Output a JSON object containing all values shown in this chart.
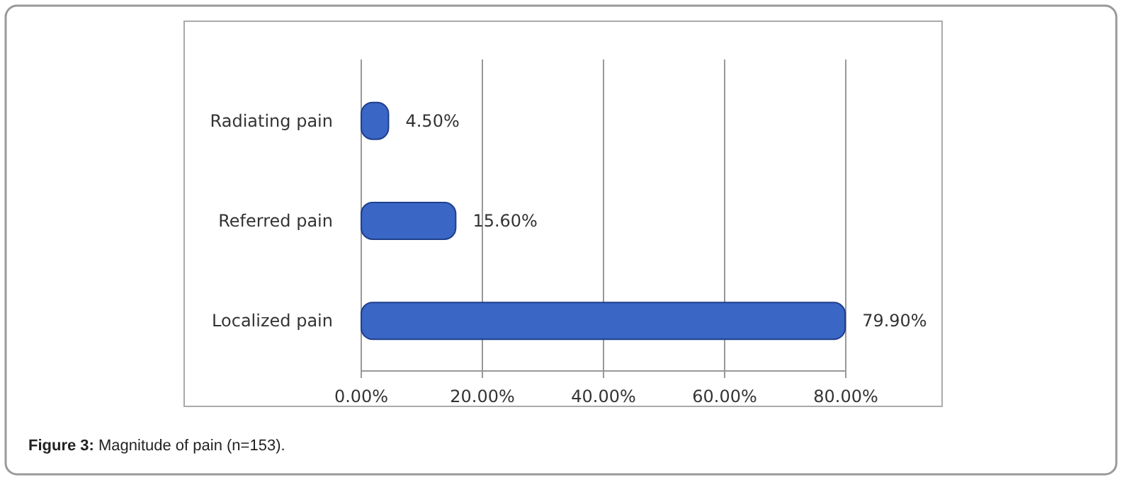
{
  "chart_data": {
    "type": "bar",
    "orientation": "horizontal",
    "categories": [
      "Radiating pain",
      "Referred pain",
      "Localized pain"
    ],
    "values": [
      4.5,
      15.6,
      79.9
    ],
    "color": "#3a66c6",
    "value_labels": [
      "4.50%",
      "15.60%",
      "79.90%"
    ],
    "xlim": [
      0,
      80
    ],
    "xticks": [
      {
        "value": 0,
        "label": "0.00%"
      },
      {
        "value": 20,
        "label": "20.00%"
      },
      {
        "value": 40,
        "label": "40.00%"
      },
      {
        "value": 60,
        "label": "60.00%"
      },
      {
        "value": 80,
        "label": "80.00%"
      }
    ],
    "grid": "x",
    "annotations": [
      "Figure 3: Magnitude of pain (n=153)."
    ]
  }
}
